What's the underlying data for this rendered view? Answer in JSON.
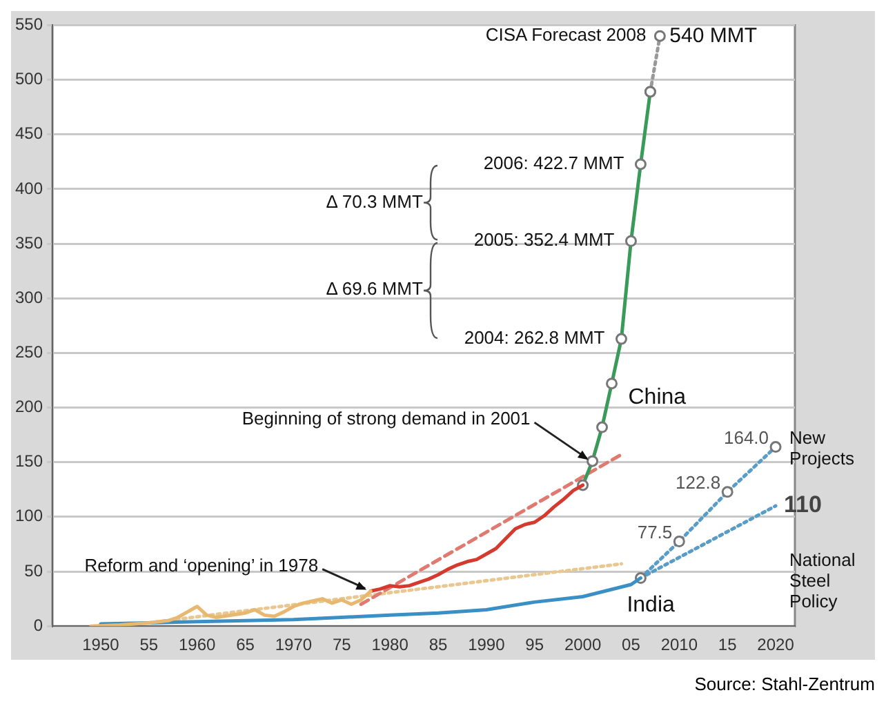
{
  "chart_data": {
    "type": "line",
    "xlim": [
      1945,
      2022
    ],
    "ylim": [
      0,
      550
    ],
    "xticks": [
      1950,
      {
        "value": 1955,
        "label": "55"
      },
      1960,
      {
        "value": 1965,
        "label": "65"
      },
      1970,
      {
        "value": 1975,
        "label": "75"
      },
      1980,
      {
        "value": 1985,
        "label": "85"
      },
      1990,
      {
        "value": 1995,
        "label": "95"
      },
      2000,
      {
        "value": 2005,
        "label": "05"
      },
      2010,
      {
        "value": 2015,
        "label": "15"
      },
      2020
    ],
    "yticks": [
      0,
      50,
      100,
      150,
      200,
      250,
      300,
      350,
      400,
      450,
      500,
      550
    ],
    "grid": "y",
    "legend": false,
    "series": [
      {
        "color": "#e8b870",
        "x": [
          1949,
          1952,
          1955,
          1957,
          1958,
          1959,
          1960,
          1961,
          1962,
          1965,
          1966,
          1967,
          1968,
          1969,
          1970,
          1971,
          1972,
          1973,
          1974,
          1975,
          1976,
          1977,
          1978
        ],
        "values": [
          0,
          1,
          3,
          5,
          8,
          13,
          18,
          10,
          8,
          12,
          15,
          10,
          9,
          13,
          18,
          21,
          23,
          25,
          21,
          24,
          20,
          24,
          32
        ]
      },
      {
        "color": "#d43a2e",
        "x": [
          1978,
          1979,
          1980,
          1981,
          1982,
          1983,
          1984,
          1985,
          1986,
          1987,
          1988,
          1989,
          1990,
          1991,
          1992,
          1993,
          1994,
          1995,
          1996,
          1997,
          1998,
          1999,
          2000
        ],
        "values": [
          32,
          34,
          37,
          36,
          37,
          40,
          43,
          47,
          52,
          56,
          59,
          61,
          66,
          71,
          80,
          89,
          93,
          95,
          101,
          109,
          116,
          124,
          129
        ]
      },
      {
        "name": "China",
        "color": "#3a9a5a",
        "marker": "circle",
        "x": [
          2000,
          2001,
          2002,
          2003,
          2004,
          2005,
          2006,
          2007
        ],
        "values": [
          129,
          151,
          182,
          222,
          262.8,
          352.4,
          422.7,
          489
        ],
        "value_labels": [
          null,
          null,
          null,
          null,
          "2004: 262.8 MMT",
          "2005: 352.4 MMT",
          "2006: 422.7 MMT",
          null
        ]
      },
      {
        "name": "CISA Forecast 2008",
        "color": "#999999",
        "marker": "circle",
        "line_style": "dotted",
        "x": [
          2007,
          2008
        ],
        "values": [
          489,
          540
        ],
        "value_labels": [
          null,
          "540 MMT"
        ]
      },
      {
        "name": "India",
        "color": "#3a8fc4",
        "x": [
          1950,
          1955,
          1960,
          1965,
          1970,
          1975,
          1980,
          1985,
          1990,
          1995,
          2000,
          2005,
          2006
        ],
        "values": [
          2,
          3,
          4,
          5,
          6,
          8,
          10,
          12,
          15,
          22,
          27,
          38,
          44
        ]
      },
      {
        "name": "New Projects",
        "color": "#5a9cc8",
        "marker": "circle",
        "line_style": "dotted",
        "x": [
          2006,
          2010,
          2015,
          2020
        ],
        "values": [
          44,
          77.5,
          122.8,
          164.0
        ],
        "value_labels": [
          null,
          "77.5",
          "122.8",
          "164.0"
        ]
      },
      {
        "name": "National Steel Policy",
        "color": "#5a9cc8",
        "line_style": "dotted",
        "x": [
          2006,
          2020
        ],
        "values": [
          44,
          110
        ],
        "value_labels": [
          null,
          "110"
        ]
      },
      {
        "color": "#e07a70",
        "line_style": "dashed",
        "x": [
          1977,
          2004
        ],
        "values": [
          20,
          157
        ]
      },
      {
        "color": "#e8c890",
        "line_style": "dotted",
        "x": [
          1955,
          2004
        ],
        "values": [
          3,
          57
        ]
      }
    ],
    "annotations": [
      {
        "text": "Reform and ‘opening’ in 1978",
        "x": 1978,
        "y": 32
      },
      {
        "text": "Beginning of strong demand in 2001",
        "x": 2001,
        "y": 151
      },
      "Δ 70.3 MMT",
      "Δ 69.6 MMT",
      "Source: Stahl-Zentrum"
    ]
  }
}
